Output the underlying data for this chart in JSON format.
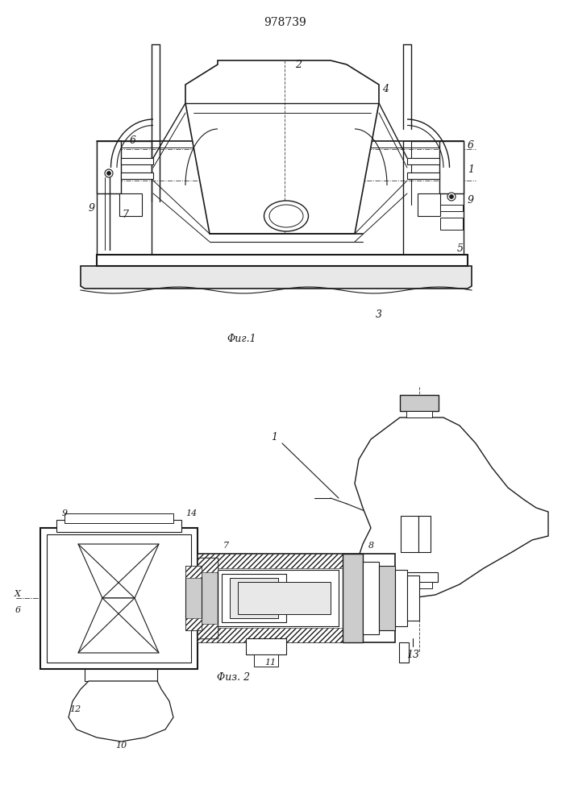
{
  "title": "978739",
  "fig1_label": "Φиг.1",
  "fig2_label": "Φиз. 2",
  "bg_color": "#ffffff",
  "line_color": "#1a1a1a",
  "line_width": 1.0,
  "fig_width": 7.07,
  "fig_height": 10.0
}
